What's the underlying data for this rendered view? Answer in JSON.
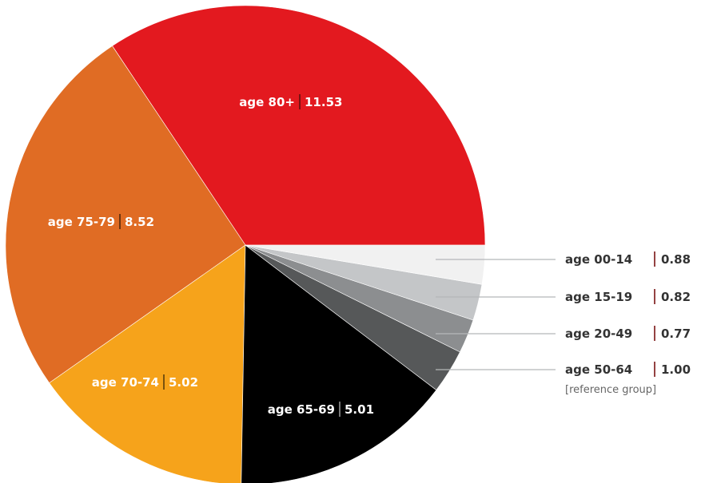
{
  "chart_data": {
    "type": "pie",
    "start_angle_deg": 0,
    "direction": "counterclockwise",
    "slices": [
      {
        "label": "age 80+",
        "value": 11.53,
        "value_text": "11.53",
        "color": "#e3191f",
        "text_color": "#ffffff",
        "divider_color": "#7a1212"
      },
      {
        "label": "age 75-79",
        "value": 8.52,
        "value_text": "8.52",
        "color": "#e06c24",
        "text_color": "#ffffff",
        "divider_color": "#6e3510"
      },
      {
        "label": "age 70-74",
        "value": 5.02,
        "value_text": "5.02",
        "color": "#f6a31b",
        "text_color": "#ffffff",
        "divider_color": "#7a520e"
      },
      {
        "label": "age 65-69",
        "value": 5.01,
        "value_text": "5.01",
        "color": "#000000",
        "text_color": "#ffffff",
        "divider_color": "#777777"
      },
      {
        "label": "age 50-64",
        "value": 1.0,
        "value_text": "1.00",
        "note": "[reference group]",
        "color": "#565859",
        "legend": true
      },
      {
        "label": "age 20-49",
        "value": 0.77,
        "value_text": "0.77",
        "color": "#8c8e90",
        "legend": true
      },
      {
        "label": "age 15-19",
        "value": 0.82,
        "value_text": "0.82",
        "color": "#c4c6c8",
        "legend": true
      },
      {
        "label": "age 00-14",
        "value": 0.88,
        "value_text": "0.88",
        "color": "#f1f1f1",
        "legend": true
      }
    ],
    "legend_divider_color": "#7a1212"
  }
}
